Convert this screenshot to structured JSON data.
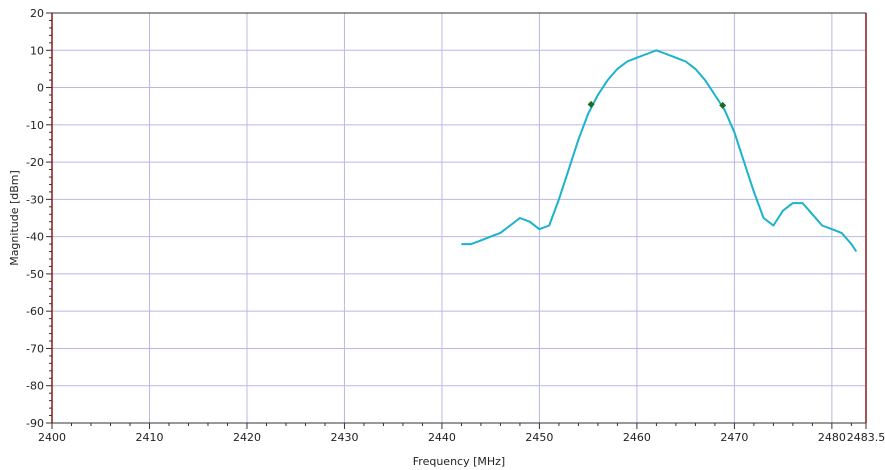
{
  "chart_data": {
    "type": "line",
    "xlabel": "Frequency [MHz]",
    "ylabel": "Magnitude [dBm]",
    "xlim": [
      2400,
      2483.5
    ],
    "ylim": [
      -90,
      20
    ],
    "x_ticks": [
      2400,
      2410,
      2420,
      2430,
      2440,
      2450,
      2460,
      2470,
      2480,
      2483.5
    ],
    "x_tick_labels": [
      "2400",
      "2410",
      "2420",
      "2430",
      "2440",
      "2450",
      "2460",
      "2470",
      "2480",
      "2483.5"
    ],
    "y_ticks": [
      20,
      10,
      0,
      -10,
      -20,
      -30,
      -40,
      -50,
      -60,
      -70,
      -80,
      -90
    ],
    "y_tick_labels": [
      "20",
      "10",
      "0",
      "-10",
      "-20",
      "-30",
      "-40",
      "-50",
      "-60",
      "-70",
      "-80",
      "-90"
    ],
    "grid": true,
    "series": [
      {
        "color": "#1ab2cc",
        "x": [
          2442,
          2443,
          2444,
          2445,
          2446,
          2447,
          2448,
          2449,
          2450,
          2451,
          2452,
          2453,
          2454,
          2455,
          2456,
          2457,
          2458,
          2459,
          2460,
          2461,
          2462,
          2463,
          2464,
          2465,
          2466,
          2467,
          2468,
          2469,
          2470,
          2471,
          2472,
          2473,
          2474,
          2475,
          2476,
          2477,
          2478,
          2479,
          2480,
          2481,
          2482,
          2482.5
        ],
        "y": [
          -42,
          -42,
          -41,
          -40,
          -39,
          -37,
          -35,
          -36,
          -38,
          -37,
          -30,
          -22,
          -14,
          -7,
          -2,
          2,
          5,
          7,
          8,
          9,
          10,
          9,
          8,
          7,
          5,
          2,
          -2,
          -6,
          -12,
          -20,
          -28,
          -35,
          -37,
          -33,
          -31,
          -31,
          -34,
          -37,
          -38,
          -39,
          -42,
          -44
        ]
      }
    ],
    "markers": [
      {
        "x": 2455.3,
        "y": -4.5,
        "color": "#1f6b1f"
      },
      {
        "x": 2468.8,
        "y": -4.8,
        "color": "#1f6b1f"
      }
    ]
  }
}
